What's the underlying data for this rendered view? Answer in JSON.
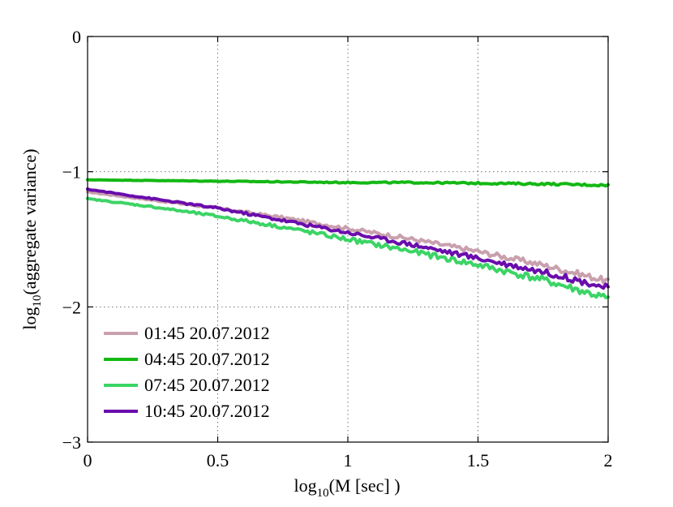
{
  "chart_data": {
    "type": "line",
    "xlabel_main": "log",
    "xlabel_sub": "10",
    "xlabel_rest": "(M [sec] )",
    "ylabel_main": "log",
    "ylabel_sub": "10",
    "ylabel_rest": "(aggregate variance)",
    "xlim": [
      0,
      2
    ],
    "ylim": [
      -3,
      0
    ],
    "xticks": [
      0,
      0.5,
      1,
      1.5,
      2
    ],
    "xtick_labels": [
      "0",
      "0.5",
      "1",
      "1.5",
      "2"
    ],
    "yticks": [
      0,
      -1,
      -2,
      -3
    ],
    "ytick_labels": [
      "0",
      "−1",
      "−2",
      "−3"
    ],
    "grid": true,
    "legend_position": "bottom-left",
    "series": [
      {
        "name": "01:45 20.07.2012",
        "color": "#c9a0ae",
        "x": [
          0,
          0.25,
          0.5,
          0.75,
          1.0,
          1.25,
          1.5,
          1.75,
          2.0
        ],
        "y": [
          -1.15,
          -1.21,
          -1.27,
          -1.34,
          -1.42,
          -1.5,
          -1.59,
          -1.69,
          -1.81
        ],
        "noise": 0.012
      },
      {
        "name": "04:45 20.07.2012",
        "color": "#14b814",
        "x": [
          0,
          0.25,
          0.5,
          0.75,
          1.0,
          1.25,
          1.5,
          1.75,
          2.0
        ],
        "y": [
          -1.06,
          -1.065,
          -1.07,
          -1.075,
          -1.08,
          -1.08,
          -1.085,
          -1.09,
          -1.1
        ],
        "noise": 0.004
      },
      {
        "name": "07:45 20.07.2012",
        "color": "#3cd466",
        "x": [
          0,
          0.25,
          0.5,
          0.75,
          1.0,
          1.25,
          1.5,
          1.75,
          2.0
        ],
        "y": [
          -1.2,
          -1.26,
          -1.33,
          -1.41,
          -1.5,
          -1.59,
          -1.69,
          -1.8,
          -1.94
        ],
        "noise": 0.015
      },
      {
        "name": "10:45 20.07.2012",
        "color": "#6a0dad",
        "x": [
          0,
          0.25,
          0.5,
          0.75,
          1.0,
          1.25,
          1.5,
          1.75,
          2.0
        ],
        "y": [
          -1.13,
          -1.2,
          -1.27,
          -1.36,
          -1.45,
          -1.54,
          -1.64,
          -1.74,
          -1.86
        ],
        "noise": 0.012
      }
    ]
  }
}
